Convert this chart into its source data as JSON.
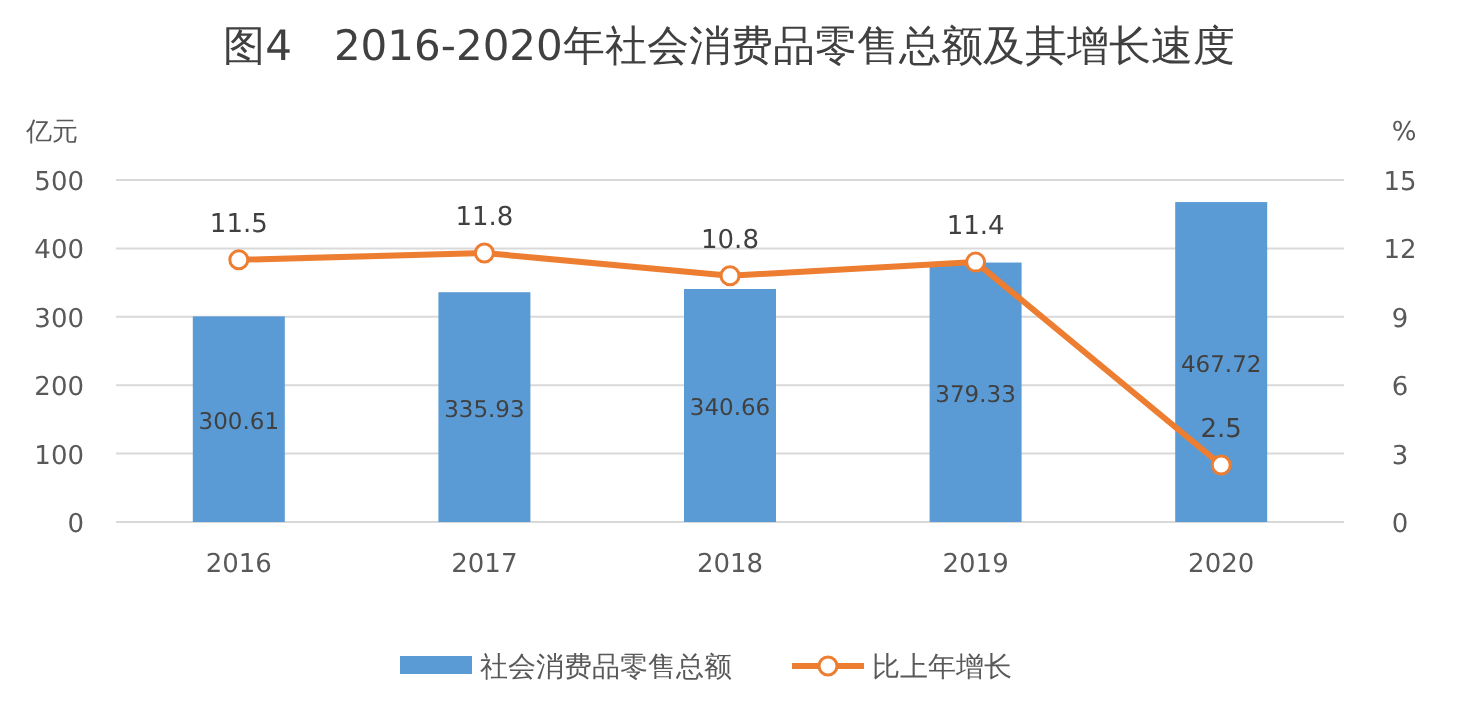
{
  "chart_data": {
    "type": "bar",
    "title": "图4　2016-2020年社会消费品零售总额及其增长速度",
    "ylabel": "亿元",
    "y2label": "%",
    "categories": [
      "2016",
      "2017",
      "2018",
      "2019",
      "2020"
    ],
    "series": [
      {
        "name": "社会消费品零售总额",
        "color": "#5b9bd5",
        "values": [
          300.61,
          335.93,
          340.66,
          379.33,
          467.72
        ]
      },
      {
        "name": "比上年增长",
        "type": "line",
        "axis": "y2",
        "color": "#ed7d31",
        "marker": "circle",
        "values": [
          11.5,
          11.8,
          10.8,
          11.4,
          2.5
        ]
      }
    ],
    "ylim": [
      0,
      500
    ],
    "yticks": [
      0,
      100,
      200,
      300,
      400,
      500
    ],
    "y2lim": [
      0,
      15
    ],
    "y2ticks": [
      0,
      3,
      6,
      9,
      12,
      15
    ],
    "grid": "y",
    "legend": "bottom",
    "data_labels": true
  }
}
